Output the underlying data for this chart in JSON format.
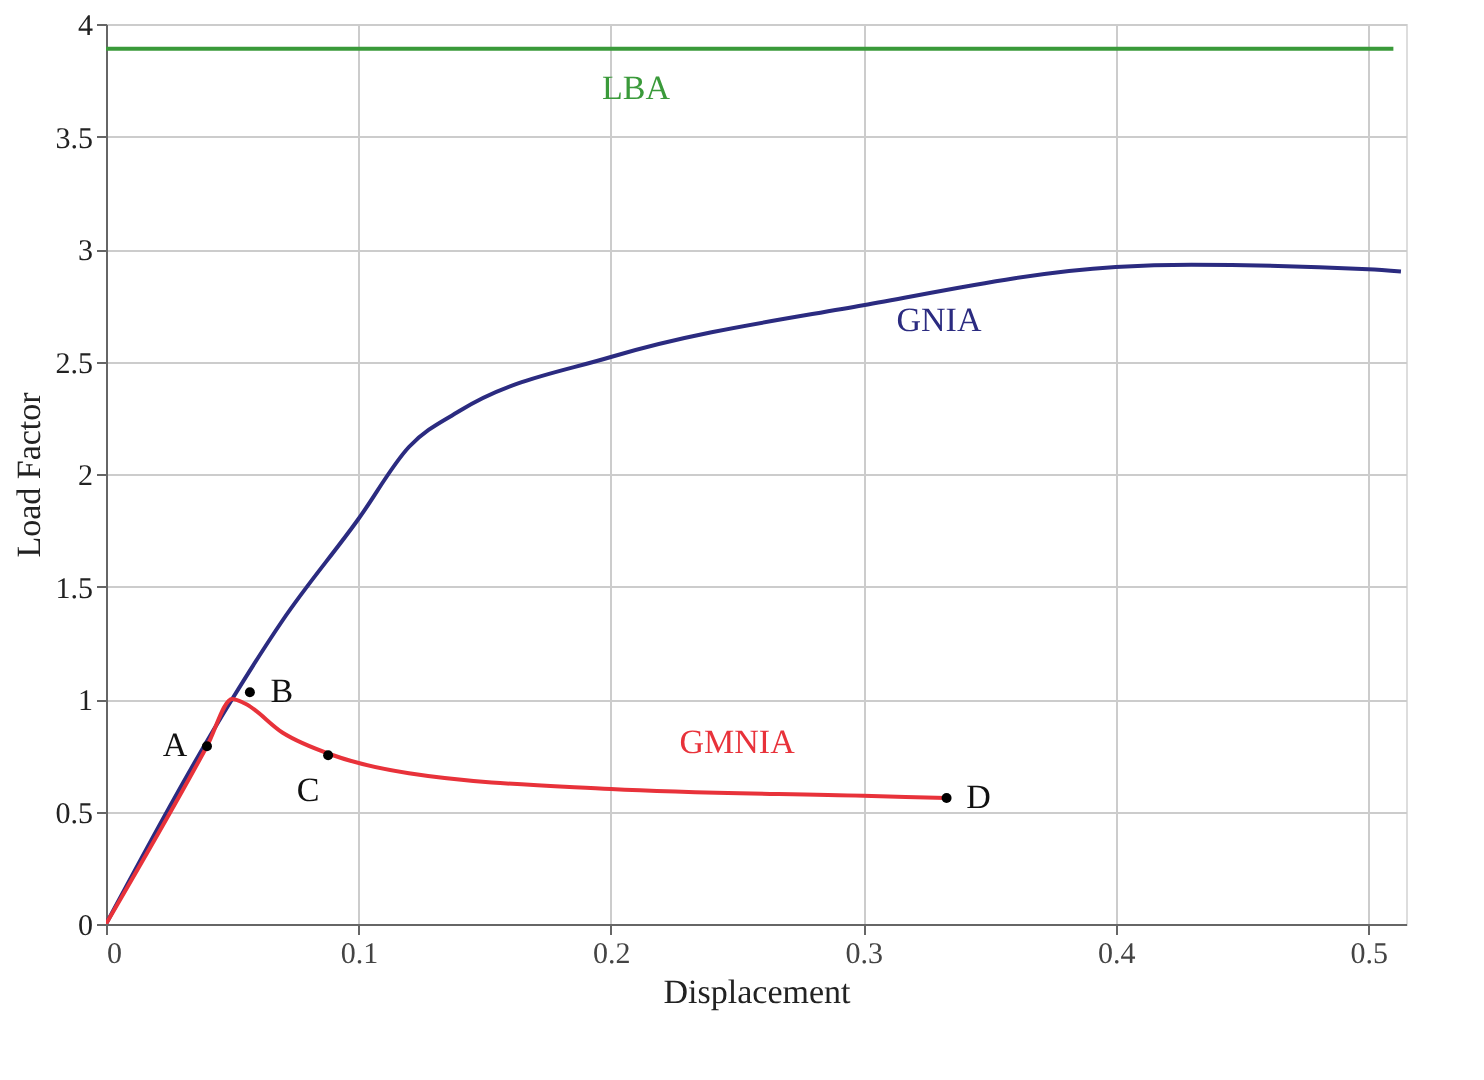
{
  "chart_data": {
    "type": "line",
    "xlabel": "Displacement",
    "ylabel": "Load Factor",
    "xlim": [
      0,
      0.515
    ],
    "xticks": [
      0,
      0.1,
      0.2,
      0.3,
      0.4,
      0.5
    ],
    "ylim": [
      0,
      4
    ],
    "yticks": [
      0,
      0.5,
      1,
      1.5,
      2,
      2.5,
      3,
      3.5,
      4
    ],
    "grid": true,
    "series": [
      {
        "name": "LBA",
        "color": "#3a9a3a",
        "x": [
          0,
          0.51
        ],
        "values": [
          3.89,
          3.89
        ]
      },
      {
        "name": "GNIA",
        "color": "#2b2b80",
        "x": [
          0,
          0.05,
          0.07,
          0.1,
          0.12,
          0.14,
          0.2,
          0.3,
          0.4,
          0.43,
          0.5,
          0.513
        ],
        "values": [
          0,
          1.0,
          1.35,
          1.8,
          2.12,
          2.28,
          2.52,
          2.75,
          2.92,
          2.93,
          2.91,
          2.9
        ]
      },
      {
        "name": "GMNIA",
        "color": "#e8323a",
        "x": [
          0,
          0.04,
          0.05,
          0.055,
          0.07,
          0.09,
          0.12,
          0.2,
          0.3,
          0.333
        ],
        "values": [
          0,
          0.79,
          1.0,
          0.98,
          0.85,
          0.75,
          0.67,
          0.6,
          0.57,
          0.56
        ]
      },
      {
        "type": "scatter",
        "color": "#000000",
        "x": [
          0.04,
          0.057,
          0.088,
          0.333
        ],
        "values": [
          0.79,
          1.03,
          0.75,
          0.56
        ]
      }
    ],
    "annotations": [
      {
        "text": "A",
        "x": 0.04,
        "y": 0.79
      },
      {
        "text": "B",
        "x": 0.057,
        "y": 1.03
      },
      {
        "text": "C",
        "x": 0.088,
        "y": 0.75
      },
      {
        "text": "D",
        "x": 0.333,
        "y": 0.56
      }
    ]
  }
}
